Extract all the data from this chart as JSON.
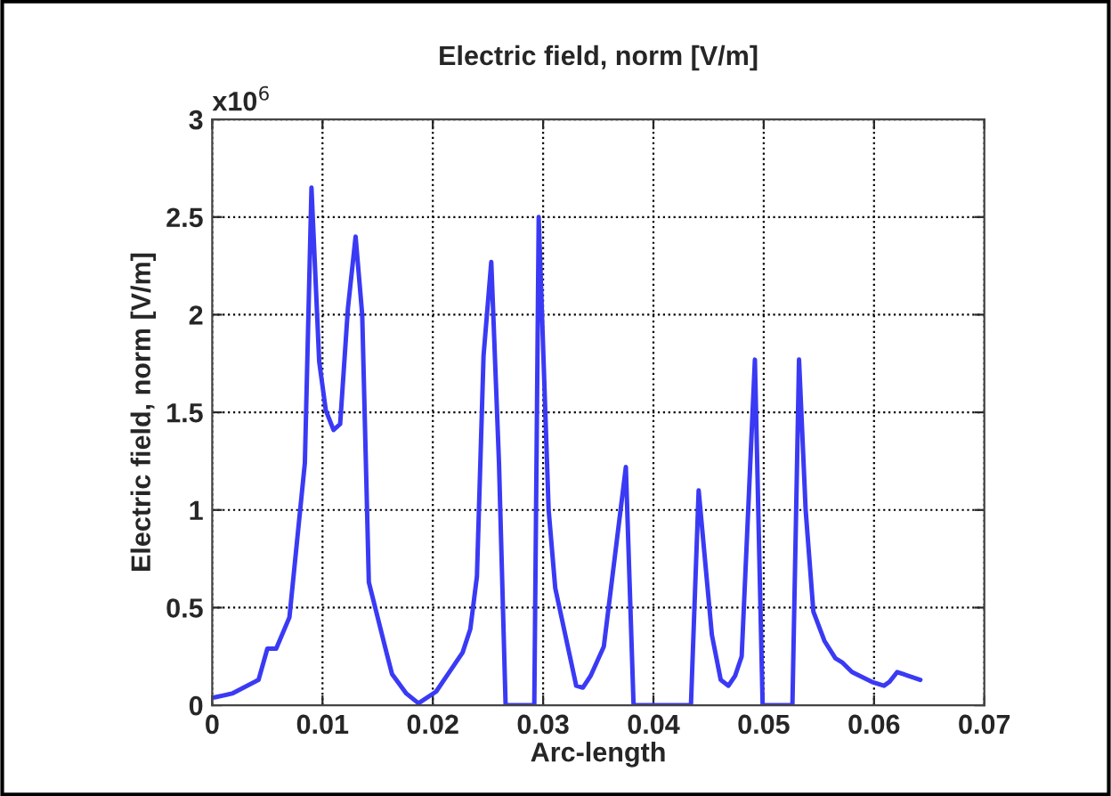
{
  "chart_data": {
    "type": "line",
    "title": "Electric field, norm [V/m]",
    "xlabel": "Arc-length",
    "ylabel": "Electric field, norm [V/m]",
    "annotations": [
      "x10$^{6}$"
    ],
    "series": [
      {
        "color": "#3a3af5",
        "x": [
          0.0002,
          0.0018,
          0.0042,
          0.005,
          0.0058,
          0.007,
          0.0084,
          0.009,
          0.0097,
          0.0103,
          0.011,
          0.0116,
          0.0123,
          0.013,
          0.0136,
          0.0142,
          0.0158,
          0.0163,
          0.0176,
          0.0187,
          0.0203,
          0.0227,
          0.0234,
          0.024,
          0.0246,
          0.0253,
          0.026,
          0.0266,
          0.0292,
          0.0296,
          0.0305,
          0.0311,
          0.033,
          0.0336,
          0.0343,
          0.0355,
          0.0375,
          0.0382,
          0.0434,
          0.0441,
          0.0453,
          0.0461,
          0.0468,
          0.0474,
          0.048,
          0.0492,
          0.0499,
          0.0526,
          0.0532,
          0.0538,
          0.0545,
          0.0555,
          0.0565,
          0.0571,
          0.058,
          0.0598,
          0.0609,
          0.0614,
          0.0621,
          0.0642
        ],
        "values": [
          0.04,
          0.06,
          0.13,
          0.29,
          0.29,
          0.45,
          1.24,
          2.65,
          1.76,
          1.51,
          1.41,
          1.44,
          2.03,
          2.4,
          2.0,
          0.63,
          0.27,
          0.16,
          0.06,
          0.01,
          0.07,
          0.27,
          0.39,
          0.66,
          1.79,
          2.27,
          1.24,
          0,
          0,
          2.5,
          1.0,
          0.6,
          0.1,
          0.09,
          0.15,
          0.3,
          1.22,
          0,
          0,
          1.1,
          0.36,
          0.13,
          0.1,
          0.15,
          0.25,
          1.77,
          0,
          0,
          1.77,
          1.0,
          0.48,
          0.33,
          0.24,
          0.22,
          0.17,
          0.12,
          0.1,
          0.12,
          0.17,
          0.13
        ]
      }
    ],
    "xlim": [
      0,
      0.07
    ],
    "xticks": [
      0,
      0.01,
      0.02,
      0.03,
      0.04,
      0.05,
      0.06,
      0.07
    ],
    "ylim": [
      0,
      3
    ],
    "yticks": [
      0,
      0.5,
      1,
      1.5,
      2,
      2.5,
      3
    ],
    "grid": true,
    "line_style": "solid",
    "marker": "none"
  }
}
